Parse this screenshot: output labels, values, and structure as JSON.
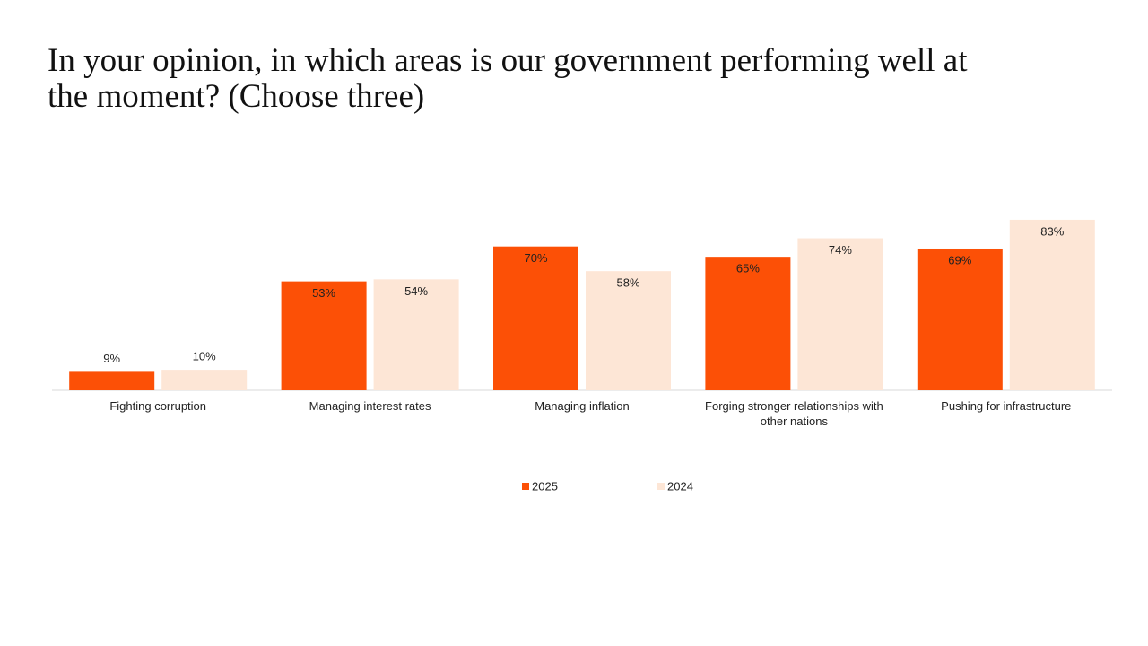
{
  "chart_data": {
    "type": "bar",
    "title": "In your opinion, in which areas is our government performing well at the moment? (Choose three)",
    "categories": [
      "Fighting corruption",
      "Managing interest rates",
      "Managing inflation",
      "Forging stronger relationships with other nations",
      "Pushing for infrastructure"
    ],
    "series": [
      {
        "name": "2025",
        "color": "#fc5006",
        "values": [
          9,
          53,
          70,
          65,
          69
        ],
        "value_labels": [
          "9%",
          "53%",
          "70%",
          "65%",
          "69%"
        ]
      },
      {
        "name": "2024",
        "color": "#fde6d6",
        "values": [
          10,
          54,
          58,
          74,
          83
        ],
        "value_labels": [
          "10%",
          "54%",
          "58%",
          "74%",
          "83%"
        ]
      }
    ],
    "ylim": [
      0,
      100
    ]
  }
}
